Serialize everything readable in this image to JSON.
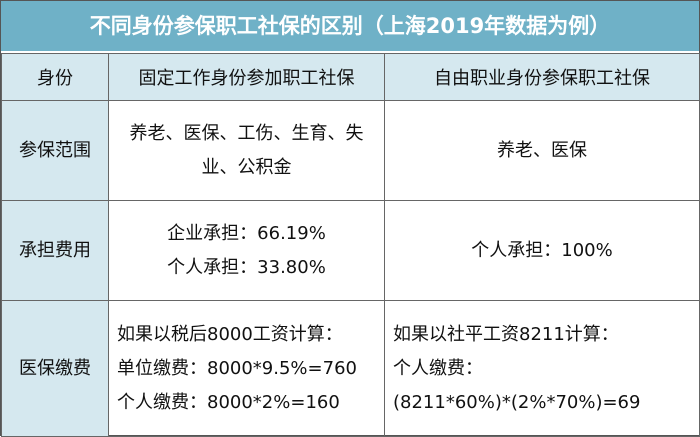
{
  "title": "不同身份参保职工社保的区别（上海2019年数据为例）",
  "table": {
    "header": [
      "身份",
      "固定工作身份参加职工社保",
      "自由职业身份参保职工社保"
    ],
    "rows": [
      [
        [
          "参保范围"
        ],
        [
          "养老、医保、工伤、生育、失",
          "业、公积金"
        ],
        [
          "养老、医保"
        ]
      ],
      [
        [
          "承担费用"
        ],
        [
          "企业承担：66.19%",
          "个人承担：33.80%"
        ],
        [
          "个人承担：100%"
        ]
      ],
      [
        [
          "医保缴费"
        ],
        [
          "如果以税后8000工资计算：",
          "单位缴费：8000*9.5%=760",
          "个人缴费：8000*2%=160"
        ],
        [
          "如果以社平工资8211计算：",
          "个人缴费：",
          "(8211*60%)*(2%*70%)=69"
        ]
      ]
    ]
  }
}
